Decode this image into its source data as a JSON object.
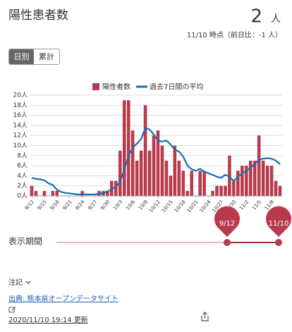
{
  "header": {
    "title": "陽性患者数",
    "value": 2,
    "unit": "人",
    "note": "11/10 時点（前日比：-1 人）"
  },
  "toggle": [
    "日別",
    "累計"
  ],
  "chart_data": {
    "type": "bar",
    "categories": [
      "9/12",
      null,
      null,
      "9/15",
      null,
      null,
      "9/18",
      null,
      null,
      "9/21",
      null,
      null,
      "9/24",
      null,
      null,
      "9/27",
      null,
      null,
      "9/30",
      null,
      null,
      "10/3",
      null,
      null,
      "10/6",
      null,
      null,
      "10/9",
      null,
      null,
      "10/12",
      null,
      null,
      "10/15",
      null,
      null,
      "10/18",
      null,
      null,
      "10/21",
      null,
      null,
      "10/24",
      null,
      null,
      "10/27",
      null,
      null,
      "10/30",
      null,
      null,
      "11/2",
      null,
      null,
      "11/5",
      null,
      null,
      "11/8",
      null,
      null
    ],
    "series": [
      {
        "name": "陽性者数",
        "color": "#b83a4b",
        "values": [
          2,
          1,
          0,
          1,
          0,
          1,
          1,
          0,
          0,
          0,
          0,
          0,
          1,
          0,
          0,
          0,
          1,
          1,
          1,
          3,
          3,
          9,
          19,
          19,
          13,
          7,
          9,
          18,
          9,
          12,
          13,
          10,
          7,
          4,
          10,
          7,
          5,
          1,
          5,
          0,
          5,
          5,
          0,
          1,
          2,
          2,
          2,
          8,
          3,
          5,
          6,
          6,
          7,
          7,
          12,
          7,
          6,
          6,
          3,
          2
        ]
      },
      {
        "name": "過去7日間の平均",
        "color": "#1a6db5",
        "type": "line",
        "values": [
          3.6,
          3.4,
          3.3,
          3.1,
          2.5,
          2.2,
          1.2,
          0.8,
          0.6,
          0.5,
          0.4,
          0.3,
          0.3,
          0.3,
          0.3,
          0.3,
          0.4,
          0.6,
          0.9,
          1.3,
          1.8,
          2.8,
          5.3,
          7.9,
          9.6,
          10.4,
          11.3,
          13.5,
          13.2,
          12.2,
          11.0,
          10.8,
          11.0,
          10.2,
          9.2,
          8.8,
          7.8,
          6.0,
          5.3,
          5.0,
          5.4,
          4.8,
          4.5,
          4.2,
          3.8,
          3.6,
          4.2,
          3.8,
          3.0,
          3.8,
          4.5,
          5.0,
          5.6,
          6.3,
          7.2,
          7.4,
          7.5,
          7.4,
          7.0,
          6.3
        ]
      }
    ],
    "ylim": [
      0,
      20
    ],
    "yticks": [
      {
        "value": 0,
        "label": "0人"
      },
      {
        "value": 2,
        "label": "2人"
      },
      {
        "value": 4,
        "label": "4人"
      },
      {
        "value": 6,
        "label": "6人"
      },
      {
        "value": 8,
        "label": "8人"
      },
      {
        "value": 10,
        "label": "10人"
      },
      {
        "value": 12,
        "label": "12人"
      },
      {
        "value": 14,
        "label": "14人"
      },
      {
        "value": 16,
        "label": "16人"
      },
      {
        "value": 18,
        "label": "18人"
      },
      {
        "value": 20,
        "label": "20人"
      }
    ],
    "grid": true
  },
  "period": {
    "label": "表示期間",
    "start": "9/12",
    "end": "11/10"
  },
  "footer": {
    "notes": "注記",
    "source": "出典: 熊本県オープンデータサイト",
    "updated": "2020/11/10 19:14 更新"
  }
}
